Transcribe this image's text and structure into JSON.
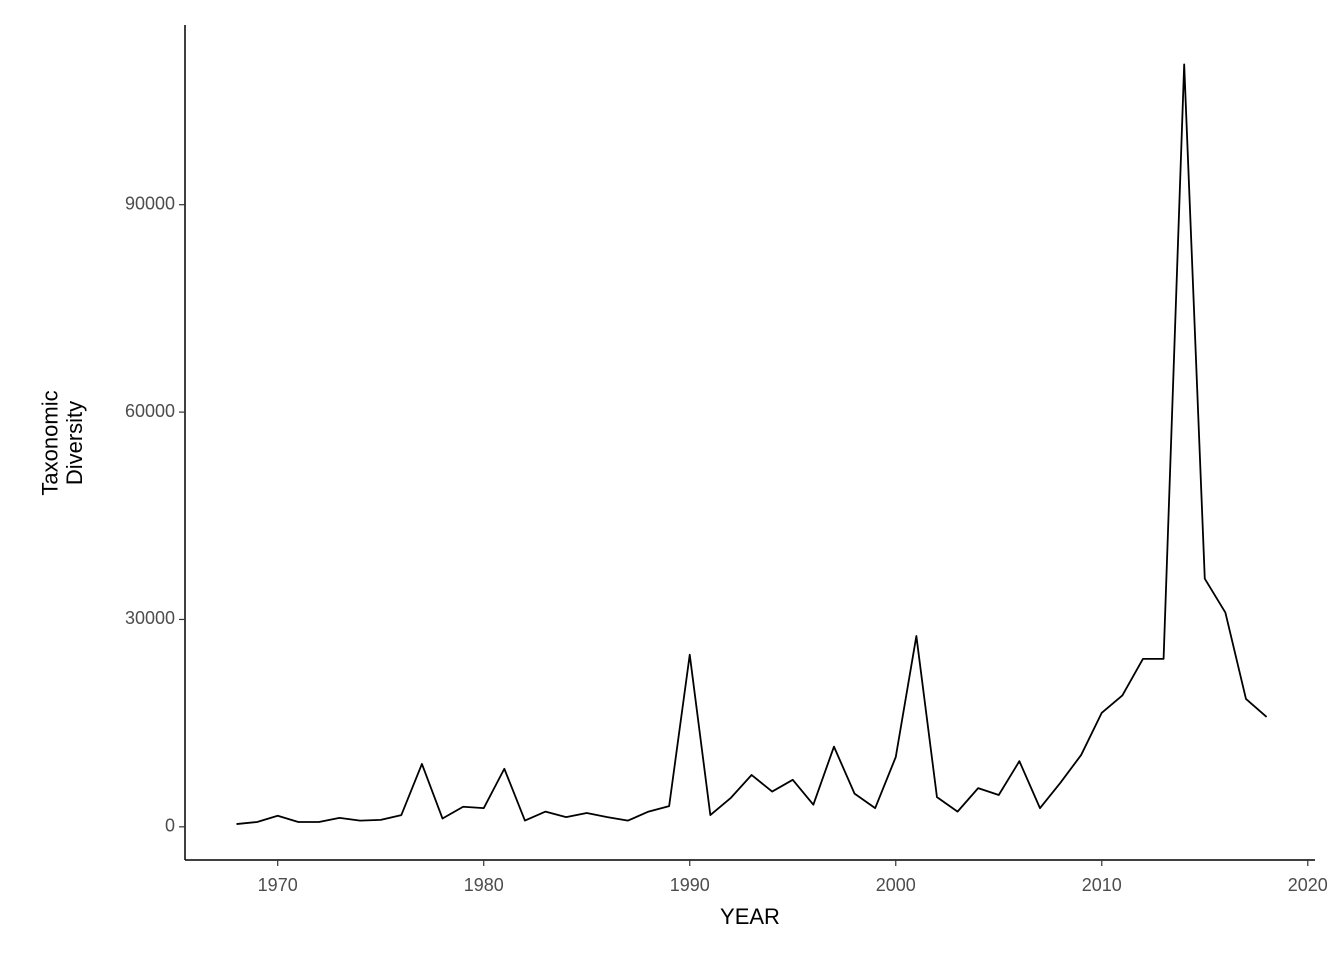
{
  "chart_data": {
    "type": "line",
    "x_label": "YEAR",
    "y_label": "Taxonomic\nDiversity",
    "x": [
      1968,
      1969,
      1970,
      1971,
      1972,
      1973,
      1974,
      1975,
      1976,
      1977,
      1978,
      1979,
      1980,
      1981,
      1982,
      1983,
      1984,
      1985,
      1986,
      1987,
      1988,
      1989,
      1990,
      1991,
      1992,
      1993,
      1994,
      1995,
      1996,
      1997,
      1998,
      1999,
      2000,
      2001,
      2002,
      2003,
      2004,
      2005,
      2006,
      2007,
      2008,
      2009,
      2010,
      2011,
      2012,
      2013,
      2014,
      2015,
      2016,
      2017,
      2018
    ],
    "values": [
      400,
      700,
      1600,
      700,
      700,
      1300,
      900,
      1000,
      1700,
      9100,
      1200,
      2900,
      2700,
      8400,
      900,
      2200,
      1400,
      2000,
      1400,
      900,
      2200,
      3000,
      24900,
      1700,
      4200,
      7500,
      5100,
      6800,
      3200,
      11600,
      4800,
      2700,
      10100,
      27600,
      4300,
      2200,
      5600,
      4600,
      9500,
      2700,
      6400,
      10400,
      16500,
      19000,
      24300,
      24300,
      110300,
      35900,
      31000,
      18500,
      15900
    ],
    "color": "#000000",
    "xlim": [
      1965.5,
      2020.35
    ],
    "ylim": [
      -4800,
      116000
    ],
    "xticks": [
      1970,
      1980,
      1990,
      2000,
      2010,
      2020
    ],
    "yticks": [
      0,
      30000,
      60000,
      90000
    ],
    "grid": false
  }
}
